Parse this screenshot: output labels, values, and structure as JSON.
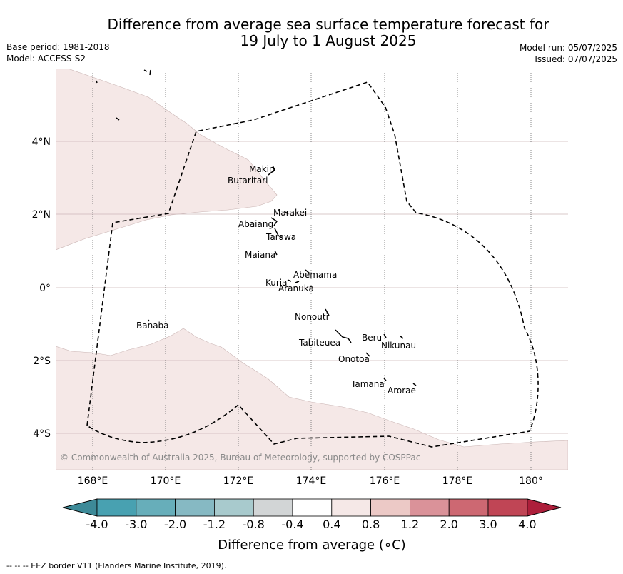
{
  "title_line1": "Difference from average sea surface temperature forecast for",
  "title_line2": "19 July to 1 August 2025",
  "base_period": "Base period: 1981-2018",
  "model": "Model: ACCESS-S2",
  "model_run": "Model run: 05/07/2025",
  "issued": "Issued: 07/07/2025",
  "copyright": "© Commonwealth of Australia 2025, Bureau of Meteorology, supported by COSPPac",
  "footer": "-- -- -- EEZ border V11 (Flanders Marine Institute, 2019).",
  "axes": {
    "x_ticks": [
      "168°E",
      "170°E",
      "172°E",
      "174°E",
      "176°E",
      "178°E",
      "180°"
    ],
    "y_ticks": [
      "4°N",
      "2°N",
      "0°",
      "2°S",
      "4°S"
    ]
  },
  "islands": [
    {
      "name": "Makin"
    },
    {
      "name": "Butaritari"
    },
    {
      "name": "Marakei"
    },
    {
      "name": "Abaiang"
    },
    {
      "name": "Tarawa"
    },
    {
      "name": "Maiana"
    },
    {
      "name": "Abemama"
    },
    {
      "name": "Kuria"
    },
    {
      "name": "Aranuka"
    },
    {
      "name": "Nonouti"
    },
    {
      "name": "Banaba"
    },
    {
      "name": "Beru"
    },
    {
      "name": "Tabiteuea"
    },
    {
      "name": "Nikunau"
    },
    {
      "name": "Onotoa"
    },
    {
      "name": "Tamana"
    },
    {
      "name": "Arorae"
    }
  ],
  "colorbar": {
    "title": "Difference from average (∘C)",
    "labels": [
      "-4.0",
      "-3.0",
      "-2.0",
      "-1.2",
      "-0.8",
      "-0.4",
      "0.4",
      "0.8",
      "1.2",
      "2.0",
      "3.0",
      "4.0"
    ],
    "colors": [
      "#3d8a98",
      "#48a1b1",
      "#67aeba",
      "#86b9c3",
      "#a8cacd",
      "#d2d5d6",
      "#ffffff",
      "#f5e8e7",
      "#ecc9c6",
      "#da9299",
      "#cd6872",
      "#c04555",
      "#ad1f3b"
    ]
  }
}
